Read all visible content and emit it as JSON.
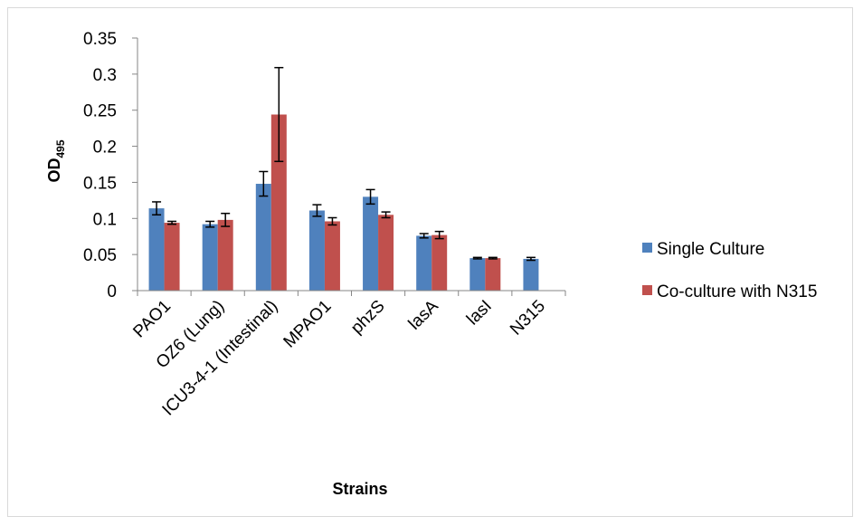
{
  "chart_data": {
    "type": "bar",
    "title": "",
    "xlabel": "Strains",
    "ylabel": "OD",
    "ylabel_subscript": "495",
    "ylim": [
      0,
      0.35
    ],
    "yticks": [
      0,
      0.05,
      0.1,
      0.15,
      0.2,
      0.25,
      0.3,
      0.35
    ],
    "ytick_labels": [
      "0",
      "0.05",
      "0.1",
      "0.15",
      "0.2",
      "0.25",
      "0.3",
      "0.35"
    ],
    "grid": false,
    "legend_position": "right",
    "categories": [
      "PAO1",
      "OZ6 (Lung)",
      "ICU3-4-1 (Intestinal)",
      "MPAO1",
      "phzS",
      "lasA",
      "lasI",
      "N315"
    ],
    "series": [
      {
        "name": "Single Culture",
        "color": "#4f81bd",
        "values": [
          0.114,
          0.092,
          0.148,
          0.111,
          0.13,
          0.076,
          0.045,
          0.044
        ],
        "errors": [
          0.009,
          0.004,
          0.017,
          0.008,
          0.01,
          0.003,
          0.001,
          0.002
        ]
      },
      {
        "name": "Co-culture with N315",
        "color": "#c0504d",
        "values": [
          0.094,
          0.098,
          0.244,
          0.096,
          0.105,
          0.077,
          0.045,
          null
        ],
        "errors": [
          0.002,
          0.009,
          0.065,
          0.005,
          0.004,
          0.005,
          0.001,
          null
        ]
      }
    ]
  }
}
